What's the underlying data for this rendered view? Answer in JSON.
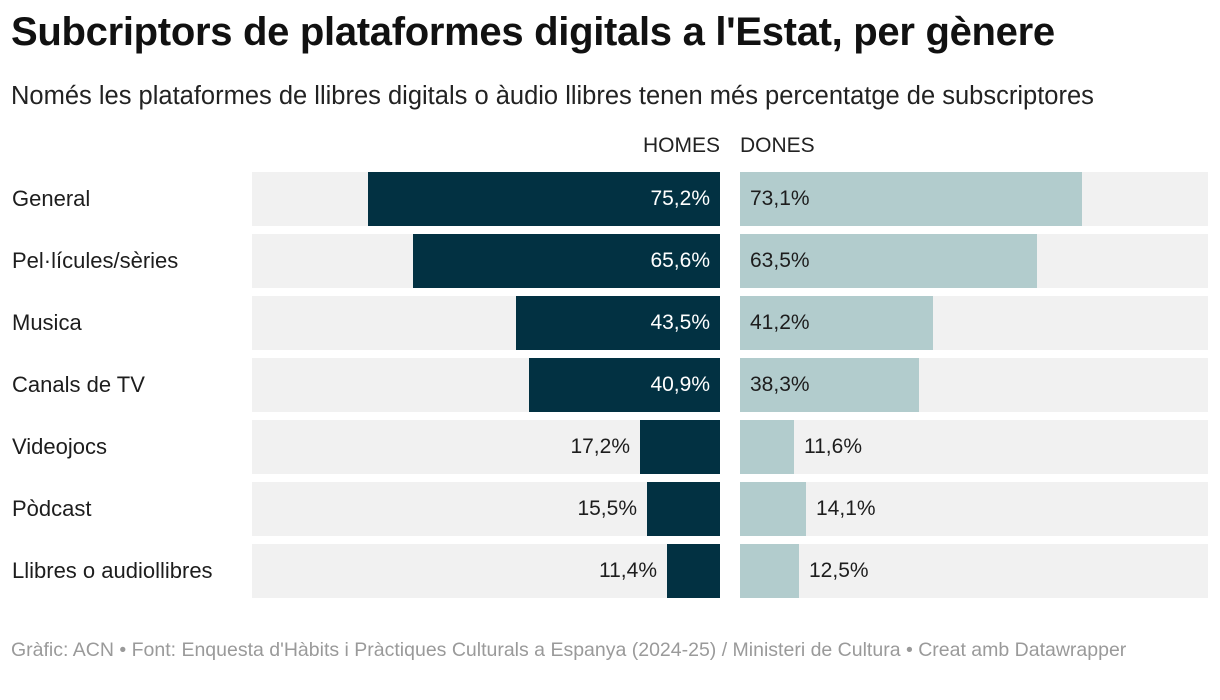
{
  "title": "Subcriptors de plataformes digitals a l'Estat, per gènere",
  "subtitle": "Només les plataformes de llibres digitals o àudio llibres tenen més percentatge de subscriptores",
  "footer": "Gràfic: ACN • Font: Enquesta d'Hàbits i Pràctiques Culturals a Espanya (2024-25) / Ministeri de Cultura • Creat amb Datawrapper",
  "colors": {
    "men": "#023142",
    "women": "#b2cccd",
    "track": "#f1f1f1"
  },
  "chart_data": {
    "type": "bar",
    "orientation": "horizontal",
    "layout": "butterfly",
    "categories": [
      "General",
      "Pel·lícules/sèries",
      "Musica",
      "Canals de TV",
      "Videojocs",
      "Pòdcast",
      "Llibres o audiollibres"
    ],
    "series": [
      {
        "name": "HOMES",
        "values": [
          75.2,
          65.6,
          43.5,
          40.9,
          17.2,
          15.5,
          11.4
        ],
        "labels": [
          "75,2%",
          "65,6%",
          "43,5%",
          "40,9%",
          "17,2%",
          "15,5%",
          "11,4%"
        ]
      },
      {
        "name": "DONES",
        "values": [
          73.1,
          63.5,
          41.2,
          38.3,
          11.6,
          14.1,
          12.5
        ],
        "labels": [
          "73,1%",
          "63,5%",
          "41,2%",
          "38,3%",
          "11,6%",
          "14,1%",
          "12,5%"
        ]
      }
    ],
    "xlim": [
      0,
      100
    ],
    "title": "Subcriptors de plataformes digitals a l'Estat, per gènere",
    "xlabel": "",
    "ylabel": "",
    "grid": false,
    "legend": "top"
  }
}
